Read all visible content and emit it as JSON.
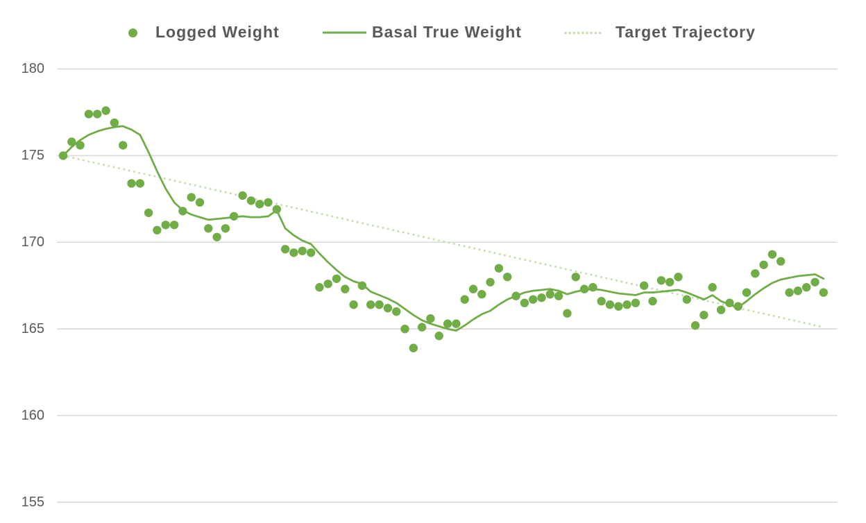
{
  "y_axis": {
    "labels": [
      "180",
      "175",
      "170",
      "165",
      "160",
      "155"
    ]
  },
  "chart_data": {
    "type": "line",
    "title": "",
    "xlabel": "",
    "ylabel": "",
    "x_unit": "day-index",
    "x_count": 90,
    "ylim": [
      155,
      180
    ],
    "yticks": [
      180,
      175,
      170,
      165,
      160,
      155
    ],
    "grid": true,
    "legend_position": "top",
    "colors": {
      "logged": "#70AD47",
      "basal": "#70AD47",
      "target": "#C3DFAE",
      "grid": "#D9D9D9",
      "axis_text": "#595959",
      "legend_text": "#595959"
    },
    "series": [
      {
        "name": "Logged Weight",
        "type": "scatter",
        "values": [
          175.0,
          175.8,
          175.6,
          177.4,
          177.4,
          177.6,
          176.9,
          175.6,
          173.4,
          173.4,
          171.7,
          170.7,
          171.0,
          171.0,
          171.8,
          172.6,
          172.3,
          170.8,
          170.3,
          170.8,
          171.5,
          172.7,
          172.4,
          172.2,
          172.3,
          171.9,
          169.6,
          169.4,
          169.5,
          169.4,
          167.4,
          167.6,
          167.9,
          167.3,
          166.4,
          167.5,
          166.4,
          166.4,
          166.2,
          166.0,
          165.0,
          163.9,
          165.1,
          165.6,
          164.6,
          165.3,
          165.3,
          166.7,
          167.3,
          167.0,
          167.7,
          168.5,
          168.0,
          166.9,
          166.5,
          166.7,
          166.8,
          167.0,
          166.9,
          165.9,
          168.0,
          167.3,
          167.4,
          166.6,
          166.4,
          166.3,
          166.4,
          166.5,
          167.5,
          166.6,
          167.8,
          167.7,
          168.0,
          166.7,
          165.2,
          165.8,
          167.4,
          166.1,
          166.5,
          166.3,
          167.1,
          168.2,
          168.7,
          169.3,
          168.9,
          167.1,
          167.2,
          167.4,
          167.7,
          167.1
        ]
      },
      {
        "name": "Basal True Weight",
        "type": "line",
        "values": [
          175.0,
          175.5,
          175.9,
          176.2,
          176.4,
          176.55,
          176.65,
          176.7,
          176.5,
          176.2,
          175.2,
          174.1,
          173.1,
          172.3,
          171.85,
          171.6,
          171.45,
          171.3,
          171.35,
          171.4,
          171.45,
          171.5,
          171.45,
          171.45,
          171.5,
          171.85,
          170.8,
          170.4,
          170.1,
          169.9,
          169.35,
          168.85,
          168.4,
          168.0,
          167.75,
          167.6,
          167.15,
          166.95,
          166.75,
          166.5,
          166.15,
          165.8,
          165.5,
          165.3,
          165.15,
          165.0,
          164.9,
          165.2,
          165.55,
          165.85,
          166.05,
          166.4,
          166.7,
          166.9,
          167.1,
          167.2,
          167.25,
          167.3,
          167.2,
          167.0,
          167.15,
          167.25,
          167.3,
          167.25,
          167.15,
          167.05,
          167.0,
          166.95,
          167.1,
          167.1,
          167.15,
          167.2,
          167.25,
          167.1,
          166.9,
          166.7,
          166.95,
          166.6,
          166.4,
          166.25,
          166.6,
          167.0,
          167.35,
          167.65,
          167.85,
          167.95,
          168.05,
          168.1,
          168.15,
          167.9
        ]
      },
      {
        "name": "Target Trajectory",
        "type": "dotted_line",
        "start": 175.0,
        "end": 165.1
      }
    ]
  }
}
